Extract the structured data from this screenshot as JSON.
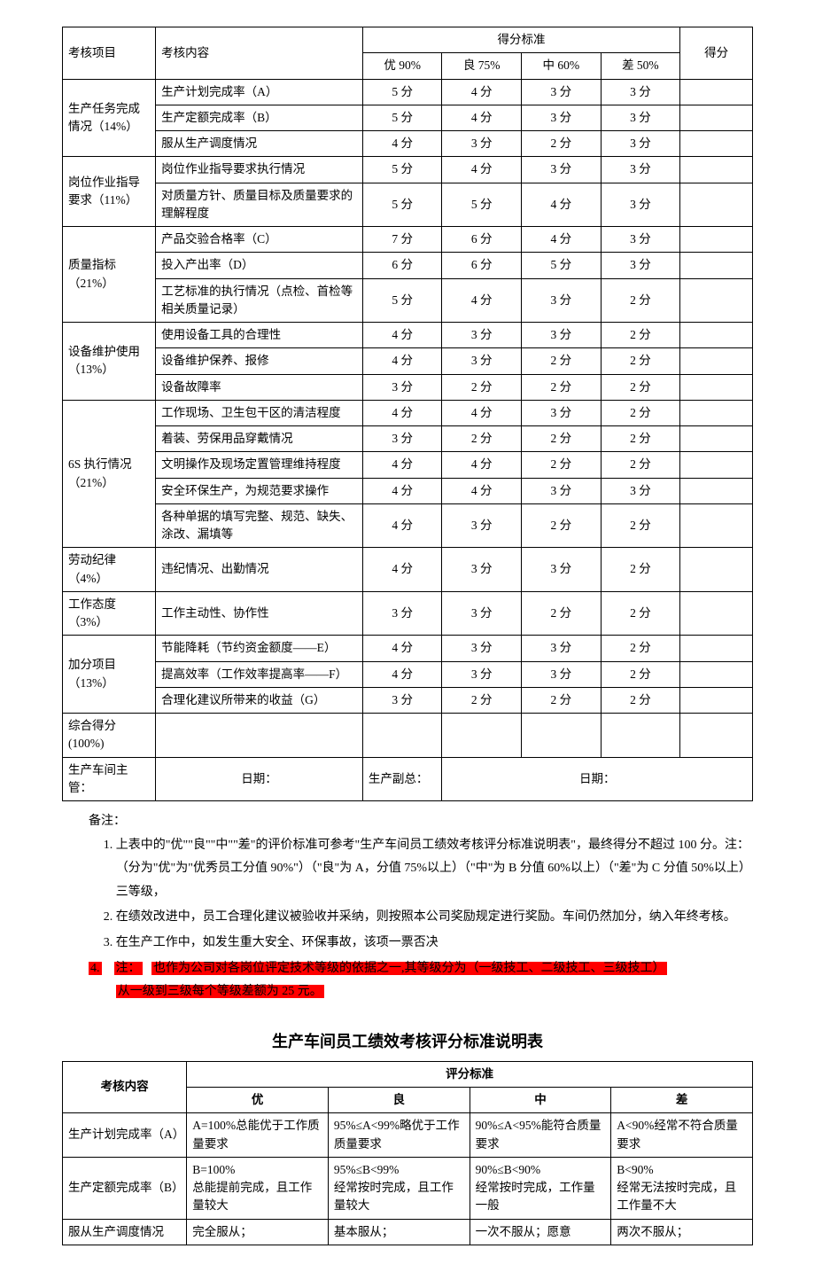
{
  "table1": {
    "headers": {
      "col_item": "考核项目",
      "col_content": "考核内容",
      "col_standard_group": "得分标准",
      "col_score": "得分",
      "grades": [
        "优 90%",
        "良 75%",
        "中 60%",
        "差 50%"
      ]
    },
    "groups": [
      {
        "label": "生产任务完成情况（14%）",
        "rows": [
          {
            "content": "生产计划完成率（A）",
            "vals": [
              "5 分",
              "4 分",
              "3 分",
              "3 分"
            ]
          },
          {
            "content": "生产定额完成率（B）",
            "vals": [
              "5 分",
              "4 分",
              "3 分",
              "3 分"
            ]
          },
          {
            "content": "服从生产调度情况",
            "vals": [
              "4 分",
              "3 分",
              "2 分",
              "3 分"
            ]
          }
        ]
      },
      {
        "label": "岗位作业指导要求（11%）",
        "rows": [
          {
            "content": "岗位作业指导要求执行情况",
            "vals": [
              "5 分",
              "4 分",
              "3 分",
              "3 分"
            ]
          },
          {
            "content": "对质量方针、质量目标及质量要求的理解程度",
            "vals": [
              "5 分",
              "5 分",
              "4 分",
              "3 分"
            ]
          }
        ]
      },
      {
        "label": "质量指标（21%）",
        "rows": [
          {
            "content": "产品交验合格率（C）",
            "vals": [
              "7 分",
              "6 分",
              "4 分",
              "3 分"
            ]
          },
          {
            "content": "投入产出率（D）",
            "vals": [
              "6 分",
              "6 分",
              "5 分",
              "3 分"
            ]
          },
          {
            "content": "工艺标准的执行情况（点检、首检等相关质量记录）",
            "vals": [
              "5 分",
              "4 分",
              "3 分",
              "2 分"
            ]
          }
        ]
      },
      {
        "label": "设备维护使用（13%）",
        "rows": [
          {
            "content": "使用设备工具的合理性",
            "vals": [
              "4 分",
              "3 分",
              "3 分",
              "2 分"
            ]
          },
          {
            "content": "设备维护保养、报修",
            "vals": [
              "4 分",
              "3 分",
              "2 分",
              "2 分"
            ]
          },
          {
            "content": "设备故障率",
            "vals": [
              "3 分",
              "2 分",
              "2 分",
              "2 分"
            ]
          }
        ]
      },
      {
        "label": "6S 执行情况（21%）",
        "rows": [
          {
            "content": "工作现场、卫生包干区的清洁程度",
            "vals": [
              "4 分",
              "4 分",
              "3 分",
              "2 分"
            ]
          },
          {
            "content": "着装、劳保用品穿戴情况",
            "vals": [
              "3 分",
              "2 分",
              "2 分",
              "2 分"
            ]
          },
          {
            "content": "文明操作及现场定置管理维持程度",
            "vals": [
              "4 分",
              "4 分",
              "2 分",
              "2 分"
            ]
          },
          {
            "content": "安全环保生产，为规范要求操作",
            "vals": [
              "4 分",
              "4 分",
              "3 分",
              "3 分"
            ]
          },
          {
            "content": "各种单据的填写完整、规范、缺失、涂改、漏填等",
            "vals": [
              "4 分",
              "3 分",
              "2 分",
              "2 分"
            ]
          }
        ]
      },
      {
        "label": "劳动纪律（4%）",
        "rows": [
          {
            "content": "违纪情况、出勤情况",
            "vals": [
              "4 分",
              "3 分",
              "3 分",
              "2 分"
            ]
          }
        ]
      },
      {
        "label": "工作态度（3%）",
        "rows": [
          {
            "content": "工作主动性、协作性",
            "vals": [
              "3 分",
              "3 分",
              "2 分",
              "2 分"
            ]
          }
        ]
      },
      {
        "label": "加分项目（13%）",
        "rows": [
          {
            "content": "节能降耗（节约资金额度——E）",
            "vals": [
              "4 分",
              "3 分",
              "3 分",
              "2 分"
            ]
          },
          {
            "content": "提高效率（工作效率提高率——F）",
            "vals": [
              "4 分",
              "3 分",
              "3 分",
              "2 分"
            ]
          },
          {
            "content": "合理化建议所带来的收益（G）",
            "vals": [
              "3 分",
              "2 分",
              "2 分",
              "2 分"
            ]
          }
        ]
      }
    ],
    "total_row": {
      "label": "综合得分(100%)"
    },
    "sig": {
      "left_label": "生产车间主管：",
      "left_date": "日期：",
      "mid_label": "生产副总：",
      "right_date": "日期："
    }
  },
  "notes": {
    "label": "备注：",
    "items": [
      "上表中的\"优\"\"良\"\"中\"\"差\"的评价标准可参考\"生产车间员工绩效考核评分标准说明表\"，最终得分不超过 100 分。注：（分为\"优\"为\"优秀员工分值 90%\"）（\"良\"为 A，分值 75%以上）（\"中\"为 B 分值 60%以上）（\"差\"为 C 分值 50%以上）三等级，",
      "在绩效改进中，员工合理化建议被验收并采纳，则按照本公司奖励规定进行奖励。车间仍然加分，纳入年终考核。",
      "在生产工作中，如发生重大安全、环保事故，该项一票否决"
    ],
    "note4_num": "4.",
    "note4_a": "注：",
    "note4_b": "也作为公司对各岗位评定技术等级的依据之一,其等级分为（一级技工、二级技工、三级技工）",
    "note4_c": "从一级到三级每个等级差额为 25 元。"
  },
  "title2": "生产车间员工绩效考核评分标准说明表",
  "table2": {
    "headers": {
      "col_item": "考核内容",
      "group": "评分标准",
      "grades": [
        "优",
        "良",
        "中",
        "差"
      ]
    },
    "rows": [
      {
        "label": "生产计划完成率（A）",
        "vals": [
          "A=100%总能优于工作质量要求",
          "95%≤A<99%略优于工作质量要求",
          "90%≤A<95%能符合质量要求",
          "A<90%经常不符合质量要求"
        ]
      },
      {
        "label": "生产定额完成率（B）",
        "vals": [
          "B=100%\n总能提前完成，且工作量较大",
          "95%≤B<99%\n经常按时完成，且工作量较大",
          "90%≤B<90%\n经常按时完成，工作量一般",
          "B<90%\n经常无法按时完成，且工作量不大"
        ]
      },
      {
        "label": "服从生产调度情况",
        "vals": [
          "完全服从；",
          "基本服从；",
          "一次不服从；愿意",
          "两次不服从；"
        ]
      }
    ]
  },
  "colors": {
    "highlight_bg": "#ff0000",
    "text": "#000000",
    "border": "#000000",
    "background": "#ffffff"
  }
}
